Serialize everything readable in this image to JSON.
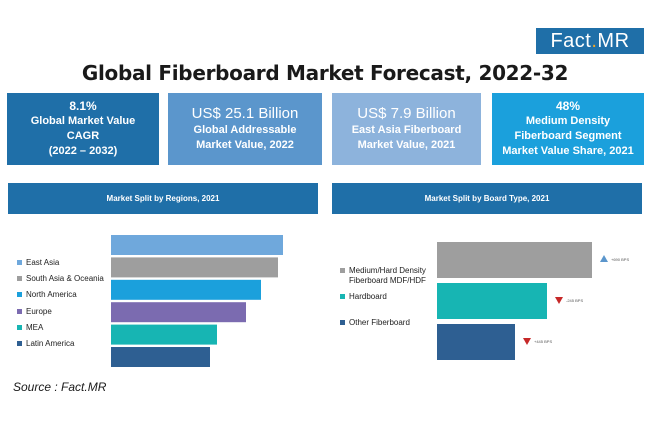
{
  "logo": {
    "left": "Fact",
    "dot": ".",
    "right": "MR"
  },
  "title": "Global Fiberboard Market Forecast, 2022-32",
  "stats": [
    {
      "value": "8.1%",
      "desc": "Global Market Value\nCAGR\n(2022 – 2032)",
      "color": "#1f6fa8"
    },
    {
      "value": "US$ 25.1 Billion",
      "desc": "Global Addressable\nMarket Value, 2022",
      "color": "#5b96cc"
    },
    {
      "value": "US$ 7.9 Billion",
      "desc": "East Asia Fiberboard\nMarket Value, 2021",
      "color": "#8db3dc"
    },
    {
      "value": "48%",
      "desc": "Medium Density\nFiberboard Segment\nMarket Value Share, 2021",
      "color": "#1ba0dc"
    }
  ],
  "source": "Source : Fact.MR",
  "chart_data": [
    {
      "type": "bar",
      "title": "Market Split by Regions, 2021",
      "categories": [
        "East Asia",
        "South Asia & Oceania",
        "North America",
        "Europe",
        "MEA",
        "Latin America"
      ],
      "values": [
        172,
        167,
        150,
        135,
        106,
        99
      ],
      "colors": [
        "#6fa8dc",
        "#9e9e9e",
        "#1ba0dc",
        "#7b6bb0",
        "#17b5b3",
        "#2e5f92"
      ]
    },
    {
      "type": "bar",
      "title": "Market Split by Board Type, 2021",
      "categories": [
        "Medium/Hard Density Fiberboard MDF/HDF",
        "Hardboard",
        "Other Fiberboard"
      ],
      "legend_labels": [
        "Medium/Hard Density\nFiberboard MDF/HDF",
        "Hardboard",
        "Other Fiberboard"
      ],
      "values": [
        155,
        110,
        78
      ],
      "colors": [
        "#9e9e9e",
        "#17b5b3",
        "#2e5f92"
      ],
      "annotations": [
        {
          "text": "+690 BPS",
          "direction": "up",
          "color": "#5b96cc"
        },
        {
          "text": "-245 BPS",
          "direction": "down",
          "color": "#c62828"
        },
        {
          "text": "+445 BPS",
          "direction": "down",
          "color": "#c62828"
        }
      ]
    }
  ]
}
